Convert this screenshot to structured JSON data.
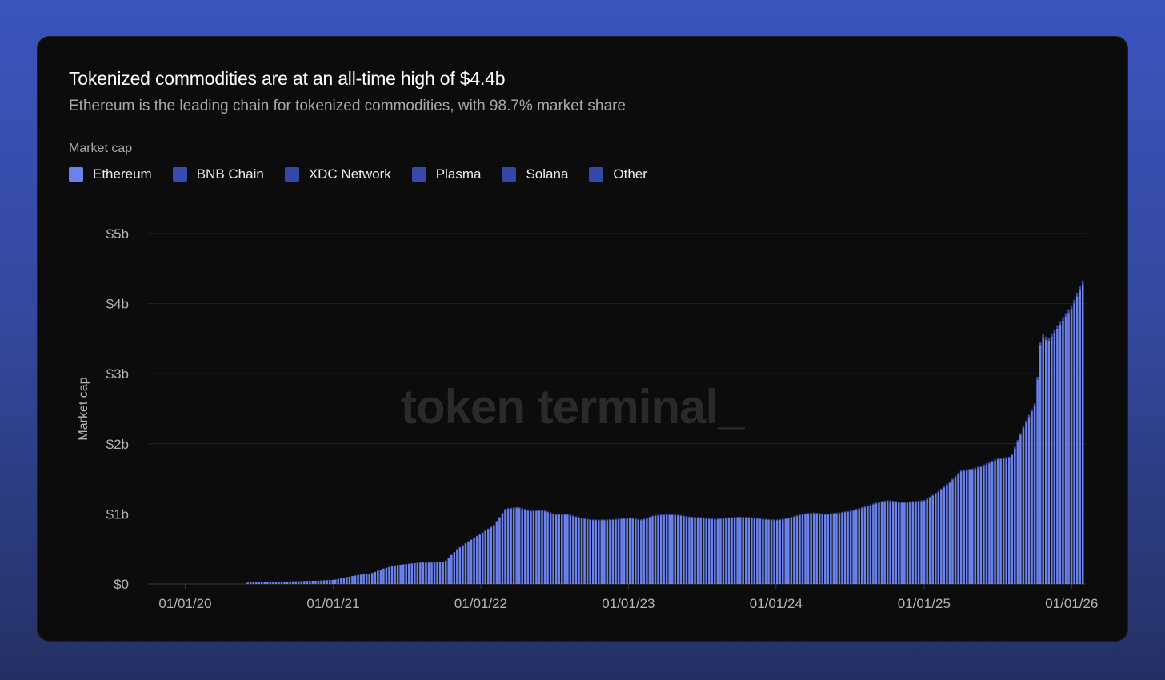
{
  "colors": {
    "ethereum": "#6b82ec",
    "bnb_chain": "#3a4cb4",
    "xdc_network": "#3548a8",
    "plasma": "#3649ad",
    "solana": "#3447a6",
    "other": "#3548ab",
    "grid": "#222226",
    "axis_text": "#b5b5b8"
  },
  "watermark": "token terminal_",
  "chart_data": {
    "type": "bar",
    "stacked": true,
    "title": "Tokenized commodities are at an all-time high of $4.4b",
    "subtitle": "Ethereum is the leading chain for tokenized commodities, with 98.7% market share",
    "legend_title": "Market cap",
    "legend_placement": "top-left",
    "ylabel": "Market cap",
    "xlabel": "",
    "ylim": [
      0,
      5000000000
    ],
    "y_ticks": [
      "$0",
      "$1b",
      "$2b",
      "$3b",
      "$4b",
      "$5b"
    ],
    "x_ticks": [
      "01/01/20",
      "01/01/21",
      "01/01/22",
      "01/01/23",
      "01/01/24",
      "01/01/25",
      "01/01/26"
    ],
    "grid": true,
    "x_range": [
      "2019-10-01",
      "2026-02-05"
    ],
    "series_names": [
      "Ethereum",
      "BNB Chain",
      "XDC Network",
      "Plasma",
      "Solana",
      "Other"
    ],
    "data_points_billions": [
      [
        "2020-06-01",
        0.02
      ],
      [
        "2020-07-01",
        0.03
      ],
      [
        "2020-08-01",
        0.035
      ],
      [
        "2020-09-01",
        0.035
      ],
      [
        "2020-10-01",
        0.04
      ],
      [
        "2020-11-01",
        0.045
      ],
      [
        "2020-12-01",
        0.05
      ],
      [
        "2021-01-01",
        0.06
      ],
      [
        "2021-02-01",
        0.1
      ],
      [
        "2021-03-01",
        0.13
      ],
      [
        "2021-04-01",
        0.15
      ],
      [
        "2021-05-01",
        0.22
      ],
      [
        "2021-06-01",
        0.27
      ],
      [
        "2021-07-01",
        0.29
      ],
      [
        "2021-08-01",
        0.31
      ],
      [
        "2021-09-01",
        0.31
      ],
      [
        "2021-10-01",
        0.32
      ],
      [
        "2021-11-01",
        0.5
      ],
      [
        "2021-12-01",
        0.62
      ],
      [
        "2022-01-01",
        0.73
      ],
      [
        "2022-02-01",
        0.85
      ],
      [
        "2022-03-01",
        1.08
      ],
      [
        "2022-04-01",
        1.1
      ],
      [
        "2022-05-01",
        1.05
      ],
      [
        "2022-06-01",
        1.06
      ],
      [
        "2022-07-01",
        1.0
      ],
      [
        "2022-08-01",
        1.0
      ],
      [
        "2022-09-01",
        0.95
      ],
      [
        "2022-10-01",
        0.92
      ],
      [
        "2022-11-01",
        0.92
      ],
      [
        "2022-12-01",
        0.93
      ],
      [
        "2023-01-01",
        0.95
      ],
      [
        "2023-02-01",
        0.92
      ],
      [
        "2023-03-01",
        0.98
      ],
      [
        "2023-04-01",
        1.0
      ],
      [
        "2023-05-01",
        0.99
      ],
      [
        "2023-06-01",
        0.96
      ],
      [
        "2023-07-01",
        0.95
      ],
      [
        "2023-08-01",
        0.93
      ],
      [
        "2023-09-01",
        0.95
      ],
      [
        "2023-10-01",
        0.96
      ],
      [
        "2023-11-01",
        0.95
      ],
      [
        "2023-12-01",
        0.93
      ],
      [
        "2024-01-01",
        0.92
      ],
      [
        "2024-02-01",
        0.95
      ],
      [
        "2024-03-01",
        1.0
      ],
      [
        "2024-04-01",
        1.02
      ],
      [
        "2024-05-01",
        1.0
      ],
      [
        "2024-06-01",
        1.02
      ],
      [
        "2024-07-01",
        1.05
      ],
      [
        "2024-08-01",
        1.1
      ],
      [
        "2024-09-01",
        1.16
      ],
      [
        "2024-10-01",
        1.2
      ],
      [
        "2024-11-01",
        1.17
      ],
      [
        "2024-12-01",
        1.18
      ],
      [
        "2025-01-01",
        1.2
      ],
      [
        "2025-02-01",
        1.32
      ],
      [
        "2025-03-01",
        1.45
      ],
      [
        "2025-04-01",
        1.63
      ],
      [
        "2025-05-01",
        1.65
      ],
      [
        "2025-06-01",
        1.72
      ],
      [
        "2025-07-01",
        1.8
      ],
      [
        "2025-08-01",
        1.82
      ],
      [
        "2025-09-01",
        2.25
      ],
      [
        "2025-10-01",
        2.6
      ],
      [
        "2025-10-15",
        3.6
      ],
      [
        "2025-11-01",
        3.5
      ],
      [
        "2025-12-01",
        3.75
      ],
      [
        "2026-01-01",
        4.0
      ],
      [
        "2026-01-15",
        4.2
      ],
      [
        "2026-02-01",
        4.4
      ]
    ]
  }
}
